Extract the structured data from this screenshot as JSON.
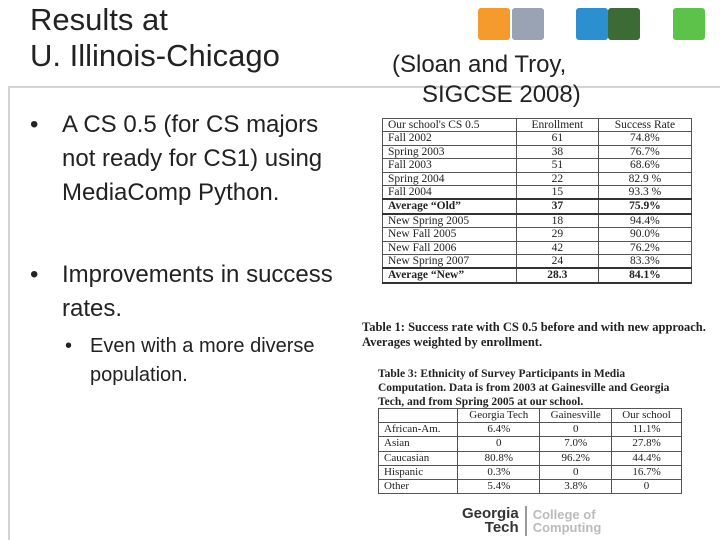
{
  "title": {
    "line1": "Results at",
    "line2": "U. Illinois-Chicago"
  },
  "citation": {
    "line1": "(Sloan and Troy,",
    "line2": "SIGCSE 2008)"
  },
  "bullets": {
    "b1": "A CS 0.5 (for CS majors not ready for CS1) using MediaComp Python.",
    "b2": "Improvements in success rates.",
    "sub1": "Even with a more diverse population."
  },
  "header_squares": {
    "colors": [
      "#f59a2c",
      "#9aa3b4",
      "#2b8fd0",
      "#3d6b35",
      "#5cc24a"
    ]
  },
  "table1": {
    "headers": [
      "Our school's CS 0.5",
      "Enrollment",
      "Success Rate"
    ],
    "rows": [
      [
        "Fall 2002",
        "61",
        "74.8%"
      ],
      [
        "Spring 2003",
        "38",
        "76.7%"
      ],
      [
        "Fall 2003",
        "51",
        "68.6%"
      ],
      [
        "Spring 2004",
        "22",
        "82.9 %"
      ],
      [
        "Fall 2004",
        "15",
        "93.3 %"
      ],
      [
        "Average “Old”",
        "37",
        "75.9%"
      ],
      [
        "New Spring 2005",
        "18",
        "94.4%"
      ],
      [
        "New Fall 2005",
        "29",
        "90.0%"
      ],
      [
        "New Fall 2006",
        "42",
        "76.2%"
      ],
      [
        "New Spring 2007",
        "24",
        "83.3%"
      ],
      [
        "Average “New”",
        "28.3",
        "84.1%"
      ]
    ],
    "caption": "Table 1: Success rate with CS 0.5 before and with new approach. Averages weighted by enrollment."
  },
  "table3": {
    "caption": "Table 3: Ethnicity of Survey Participants in Media Computation. Data is from 2003 at Gainesville and Georgia Tech, and from Spring 2005 at our school.",
    "headers": [
      "",
      "Georgia Tech",
      "Gainesville",
      "Our school"
    ],
    "rows": [
      [
        "African-Am.",
        "6.4%",
        "0",
        "11.1%"
      ],
      [
        "Asian",
        "0",
        "7.0%",
        "27.8%"
      ],
      [
        "Caucasian",
        "80.8%",
        "96.2%",
        "44.4%"
      ],
      [
        "Hispanic",
        "0.3%",
        "0",
        "16.7%"
      ],
      [
        "Other",
        "5.4%",
        "3.8%",
        "0"
      ]
    ]
  },
  "logo": {
    "left1": "Georgia",
    "left2": "Tech",
    "right1": "College of",
    "right2": "Computing"
  }
}
